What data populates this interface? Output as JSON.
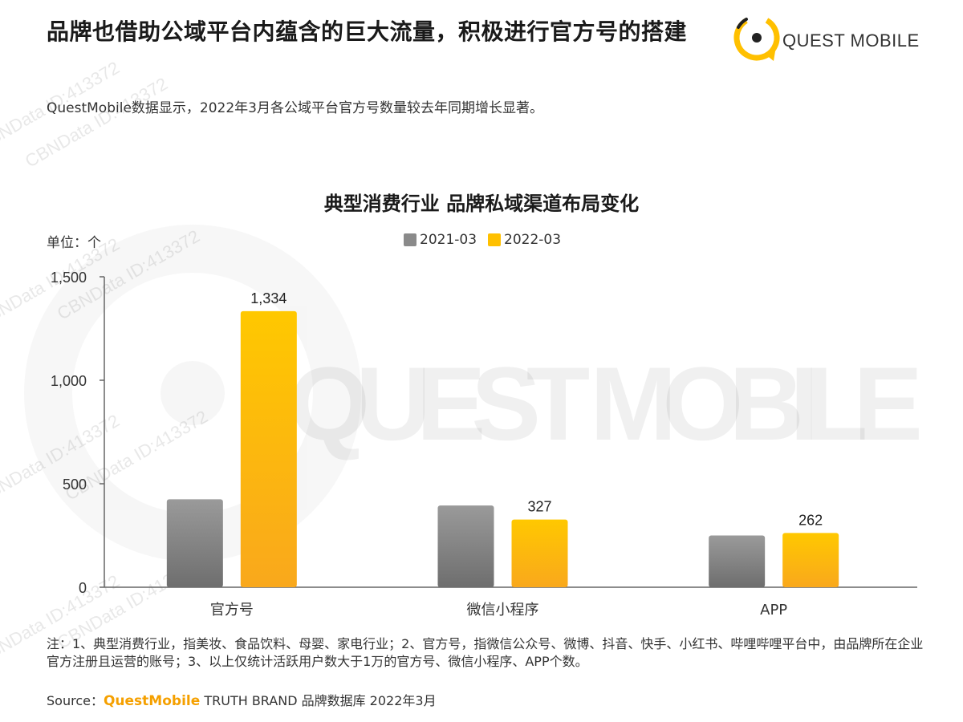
{
  "header": {
    "title": "品牌也借助公域平台内蕴含的巨大流量，积极进行官方号的搭建",
    "brand": "QUEST MOBILE"
  },
  "subtitle": "QuestMobile数据显示，2022年3月各公域平台官方号数量较去年同期增长显著。",
  "watermark": {
    "text": "CBNData ID:413372",
    "brand": "QUEST MOBILE"
  },
  "colors": {
    "series_2021": "#8a8a8a",
    "series_2022": "#ffc000",
    "brand_accent": "#f5a000"
  },
  "chart_data": {
    "type": "bar",
    "title": "典型消费行业 品牌私域渠道布局变化",
    "unit_label": "单位：个",
    "categories": [
      "官方号",
      "微信小程序",
      "APP"
    ],
    "series": [
      {
        "name": "2021-03",
        "values": [
          425,
          395,
          250
        ],
        "labels": [
          "",
          "",
          ""
        ]
      },
      {
        "name": "2022-03",
        "values": [
          1334,
          327,
          262
        ],
        "labels": [
          "1,334",
          "327",
          "262"
        ]
      }
    ],
    "yticks": [
      0,
      500,
      1000,
      1500
    ],
    "ytick_labels": [
      "0",
      "500",
      "1,000",
      "1,500"
    ],
    "ylim": [
      0,
      1500
    ],
    "grid": false,
    "legend_position": "top-center"
  },
  "footnote": "注：1、典型消费行业，指美妆、食品饮料、母婴、家电行业；2、官方号，指微信公众号、微博、抖音、快手、小红书、哔哩哔哩平台中，由品牌所在企业官方注册且运营的账号；3、以上仅统计活跃用户数大于1万的官方号、微信小程序、APP个数。",
  "source": {
    "prefix": "Source：",
    "brand": "QuestMobile",
    "suffix": " TRUTH BRAND 品牌数据库 2022年3月"
  }
}
